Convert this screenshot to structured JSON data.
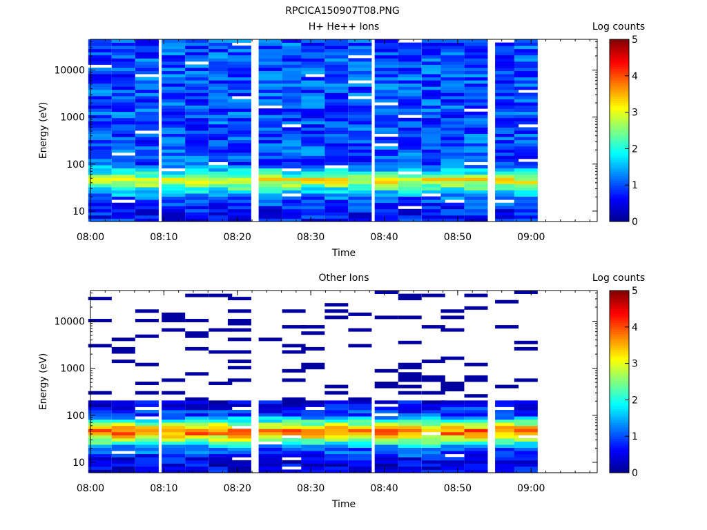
{
  "figure_title": "RPCICA150907T08.PNG",
  "colorbar_label": "Log counts",
  "colorbar_ticks": [
    "0",
    "1",
    "2",
    "3",
    "4",
    "5"
  ],
  "colormap": [
    "#00008f",
    "#0000ff",
    "#0080ff",
    "#00ffff",
    "#80ff80",
    "#ffff00",
    "#ff8000",
    "#ff0000",
    "#800000"
  ],
  "chart_data": [
    {
      "type": "heatmap",
      "title": "H+ He++ Ions",
      "xlabel": "Time",
      "ylabel": "Energy (eV)",
      "yscale": "log",
      "ylim": [
        6,
        45000
      ],
      "xlim": [
        "08:00",
        "09:09"
      ],
      "clim": [
        0,
        5
      ],
      "x_ticks": [
        "08:00",
        "08:10",
        "08:20",
        "08:30",
        "08:40",
        "08:50",
        "09:00"
      ],
      "y_ticks": [
        "10",
        "100",
        "1000",
        "10000"
      ],
      "time_bins_start": [
        "08:00",
        "08:03",
        "08:06",
        "08:10",
        "08:13",
        "08:16",
        "08:19",
        "08:23",
        "08:26",
        "08:29",
        "08:32",
        "08:35",
        "08:39",
        "08:42",
        "08:45",
        "08:48",
        "08:51",
        "08:55",
        "08:58"
      ],
      "bin_width_min": 3.2,
      "energy_profile": [
        {
          "energy": 10,
          "log_counts": 0.7
        },
        {
          "energy": 20,
          "log_counts": 1.1
        },
        {
          "energy": 30,
          "log_counts": 2.0
        },
        {
          "energy": 45,
          "log_counts": 3.2
        },
        {
          "energy": 60,
          "log_counts": 2.2
        },
        {
          "energy": 100,
          "log_counts": 1.0
        },
        {
          "energy": 1000,
          "log_counts": 1.0
        },
        {
          "energy": 10000,
          "log_counts": 1.0
        },
        {
          "energy": 40000,
          "log_counts": 1.0
        }
      ],
      "peak_energy_eV": 45
    },
    {
      "type": "heatmap",
      "title": "Other Ions",
      "xlabel": "Time",
      "ylabel": "Energy (eV)",
      "yscale": "log",
      "ylim": [
        6,
        45000
      ],
      "xlim": [
        "08:00",
        "09:09"
      ],
      "clim": [
        0,
        5
      ],
      "x_ticks": [
        "08:00",
        "08:10",
        "08:20",
        "08:30",
        "08:40",
        "08:50",
        "09:00"
      ],
      "y_ticks": [
        "10",
        "100",
        "1000",
        "10000"
      ],
      "time_bins_start": [
        "08:00",
        "08:03",
        "08:06",
        "08:10",
        "08:13",
        "08:16",
        "08:19",
        "08:23",
        "08:26",
        "08:29",
        "08:32",
        "08:35",
        "08:39",
        "08:42",
        "08:45",
        "08:48",
        "08:51",
        "08:55",
        "08:58"
      ],
      "bin_width_min": 3.2,
      "energy_profile": [
        {
          "energy": 10,
          "log_counts": 0.5
        },
        {
          "energy": 20,
          "log_counts": 1.2
        },
        {
          "energy": 30,
          "log_counts": 2.6
        },
        {
          "energy": 45,
          "log_counts": 4.0
        },
        {
          "energy": 60,
          "log_counts": 3.0
        },
        {
          "energy": 100,
          "log_counts": 1.0
        },
        {
          "energy": 200,
          "log_counts": 0.4
        },
        {
          "energy": 1000,
          "log_counts": 0.1
        },
        {
          "energy": 40000,
          "log_counts": 0.1
        }
      ],
      "sparse_above_eV": 200,
      "peak_energy_eV": 45
    }
  ]
}
